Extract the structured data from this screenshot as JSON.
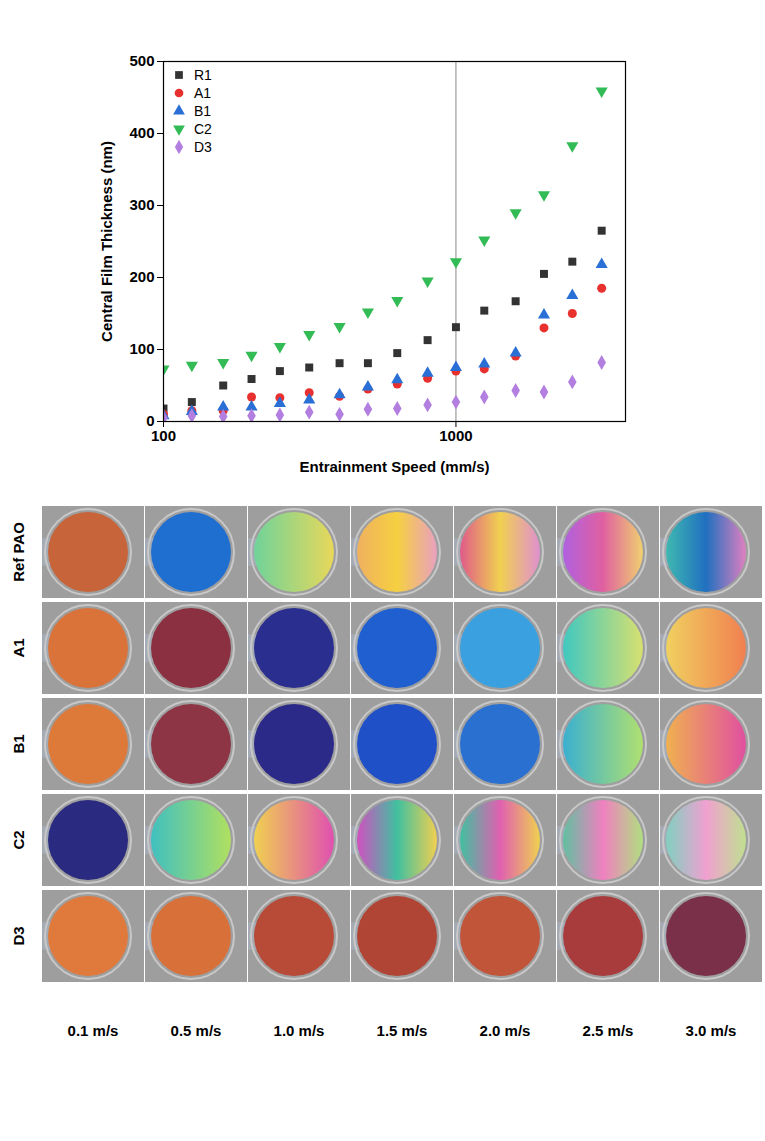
{
  "chart_data": {
    "type": "scatter",
    "x_label": "Entrainment Speed (mm/s)",
    "y_label": "Central Film Thickness (nm)",
    "x": [
      100,
      125,
      160,
      200,
      250,
      315,
      400,
      500,
      630,
      800,
      1000,
      1250,
      1600,
      2000,
      2500,
      3150
    ],
    "series": [
      {
        "name": "R1",
        "color": "#333333",
        "marker": "square",
        "values": [
          18,
          27,
          50,
          59,
          70,
          75,
          81,
          81,
          95,
          113,
          131,
          154,
          167,
          205,
          222,
          265
        ]
      },
      {
        "name": "A1",
        "color": "#e8312f",
        "marker": "circle",
        "values": [
          10,
          15,
          15,
          34,
          33,
          40,
          35,
          45,
          52,
          60,
          70,
          73,
          91,
          130,
          150,
          185
        ]
      },
      {
        "name": "B1",
        "color": "#2a6fd6",
        "marker": "triangle",
        "values": [
          8,
          14,
          20,
          20,
          25,
          30,
          37,
          48,
          58,
          67,
          75,
          80,
          95,
          148,
          175,
          218
        ]
      },
      {
        "name": "C2",
        "color": "#33bb55",
        "marker": "triangle-down",
        "values": [
          73,
          78,
          82,
          92,
          104,
          121,
          132,
          152,
          168,
          195,
          222,
          252,
          290,
          315,
          383,
          459
        ]
      },
      {
        "name": "D3",
        "color": "#b27fe0",
        "marker": "diamond",
        "values": [
          5,
          8,
          7,
          8,
          9,
          13,
          10,
          17,
          18,
          23,
          27,
          34,
          43,
          41,
          55,
          82
        ]
      }
    ],
    "xlim": [
      100,
      3800
    ],
    "ylim": [
      0,
      500
    ],
    "xticks": [
      100,
      1000
    ],
    "yticks": [
      0,
      100,
      200,
      300,
      400,
      500
    ],
    "log": "x",
    "grid": "x",
    "legend": "upper left"
  },
  "image_grid": {
    "row_labels": [
      "Ref PAO",
      "A1",
      "B1",
      "C2",
      "D3"
    ],
    "column_labels": [
      "0.1 m/s",
      "0.5 m/s",
      "1.0 m/s",
      "1.5 m/s",
      "2.0 m/s",
      "2.5 m/s",
      "3.0 m/s"
    ],
    "cells": [
      [
        [
          "#c8643a"
        ],
        [
          "#1f6fd0"
        ],
        [
          "#6fd39a",
          "#e8d85a"
        ],
        [
          "#f0b060",
          "#f5d040",
          "#e9a0c0"
        ],
        [
          "#e05a8a",
          "#f0d050",
          "#e090d0"
        ],
        [
          "#b060e0",
          "#e060a0",
          "#f0d070"
        ],
        [
          "#3fb8b0",
          "#2070c0",
          "#e080c0"
        ]
      ],
      [
        [
          "#d9733a"
        ],
        [
          "#8a3040"
        ],
        [
          "#2a2f8f"
        ],
        [
          "#1f5fcf"
        ],
        [
          "#3aa0e0"
        ],
        [
          "#40c8c0",
          "#d8e070"
        ],
        [
          "#f0d060",
          "#f08050"
        ]
      ],
      [
        [
          "#dd7a3a"
        ],
        [
          "#8e3545"
        ],
        [
          "#2b2a88"
        ],
        [
          "#2050c8"
        ],
        [
          "#2a70d0"
        ],
        [
          "#3ab0d0",
          "#b0e070"
        ],
        [
          "#f0b050",
          "#e050a0"
        ]
      ],
      [
        [
          "#2a2a80"
        ],
        [
          "#40c0c0",
          "#b0e060"
        ],
        [
          "#f0d050",
          "#e050b0"
        ],
        [
          "#d050c0",
          "#40c0a0",
          "#f0d050"
        ],
        [
          "#40c0a0",
          "#e060b0",
          "#f0d050"
        ],
        [
          "#60c0a0",
          "#f080c0",
          "#b0e080"
        ],
        [
          "#80d0c0",
          "#f0a0d0",
          "#c0e090"
        ]
      ],
      [
        [
          "#e07a3c"
        ],
        [
          "#d8703a"
        ],
        [
          "#b84a38"
        ],
        [
          "#b04535"
        ],
        [
          "#c0553a"
        ],
        [
          "#a83c3c"
        ],
        [
          "#7a3048"
        ]
      ]
    ]
  }
}
